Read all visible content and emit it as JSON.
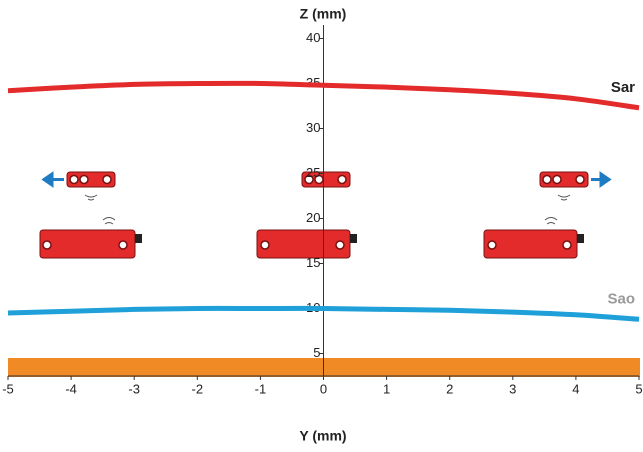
{
  "chart_data": {
    "type": "line",
    "title": "Z (mm)",
    "x_label": "Y (mm)",
    "x": [
      -5,
      -4,
      -3,
      -2,
      -1,
      0,
      1,
      2,
      3,
      4,
      5
    ],
    "series": [
      {
        "name": "Sar",
        "color": "#e32b2b",
        "label_color": "#222222",
        "values": [
          34.2,
          34.6,
          34.9,
          35.0,
          35.0,
          34.8,
          34.6,
          34.3,
          33.9,
          33.3,
          32.3
        ]
      },
      {
        "name": "Sao",
        "color": "#1fa0d8",
        "label_color": "#9a9a9a",
        "values": [
          9.5,
          9.7,
          9.9,
          10.0,
          10.0,
          10.0,
          9.9,
          9.8,
          9.6,
          9.3,
          8.8
        ]
      }
    ],
    "xlim": [
      -5,
      5
    ],
    "xticks": [
      -5,
      -4,
      -3,
      -2,
      -1,
      0,
      1,
      2,
      3,
      4,
      5
    ],
    "ylim": [
      2.5,
      41.5
    ],
    "yticks": [
      5,
      10,
      15,
      20,
      25,
      30,
      35,
      40
    ]
  }
}
